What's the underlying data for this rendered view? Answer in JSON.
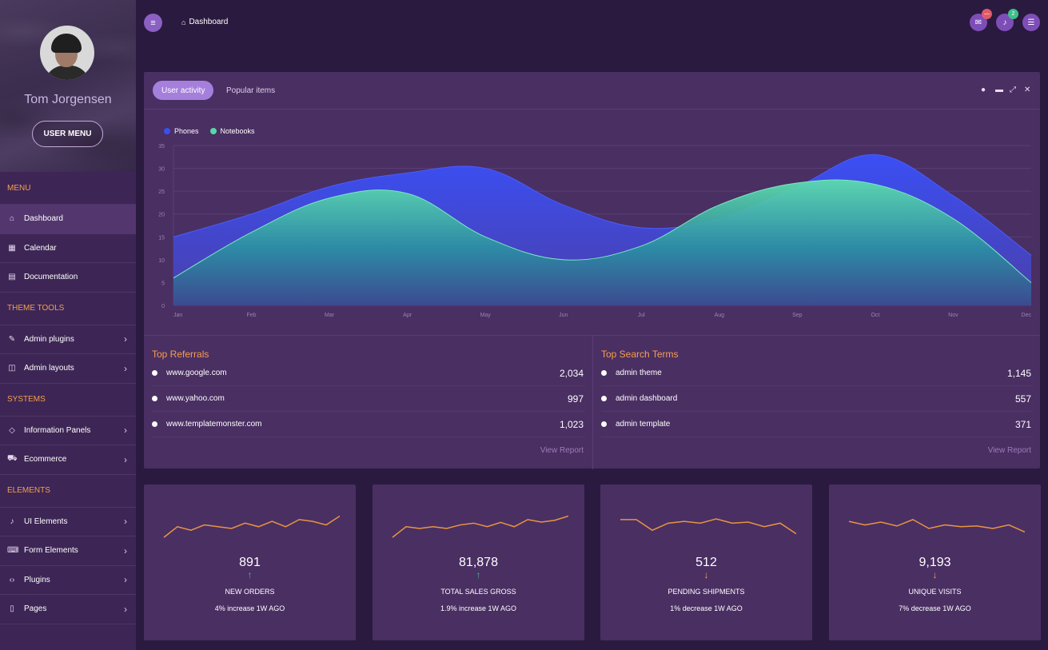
{
  "profile": {
    "name": "Tom Jorgensen",
    "menu_button": "USER MENU"
  },
  "sidebar": {
    "sections": [
      {
        "title": "MENU",
        "items": [
          {
            "label": "Dashboard",
            "icon": "home-icon",
            "active": true,
            "chevron": false
          },
          {
            "label": "Calendar",
            "icon": "calendar-icon",
            "active": false,
            "chevron": false
          },
          {
            "label": "Documentation",
            "icon": "book-icon",
            "active": false,
            "chevron": false
          }
        ]
      },
      {
        "title": "THEME TOOLS",
        "items": [
          {
            "label": "Admin plugins",
            "icon": "brush-icon",
            "chevron": true
          },
          {
            "label": "Admin layouts",
            "icon": "columns-icon",
            "chevron": true
          }
        ]
      },
      {
        "title": "SYSTEMS",
        "items": [
          {
            "label": "Information Panels",
            "icon": "diamond-icon",
            "chevron": true
          },
          {
            "label": "Ecommerce",
            "icon": "cart-icon",
            "chevron": true
          }
        ]
      },
      {
        "title": "ELEMENTS",
        "items": [
          {
            "label": "UI Elements",
            "icon": "bell-icon",
            "chevron": true
          },
          {
            "label": "Form Elements",
            "icon": "keyboard-icon",
            "chevron": true
          },
          {
            "label": "Plugins",
            "icon": "code-icon",
            "chevron": true
          },
          {
            "label": "Pages",
            "icon": "file-icon",
            "chevron": true
          }
        ]
      }
    ]
  },
  "topbar": {
    "breadcrumb": "Dashboard",
    "messages_badge": "—",
    "notifications_badge": "2",
    "colors": {
      "messages_badge": "#e05a6a",
      "notifications_badge": "#3fbf8a"
    }
  },
  "panel": {
    "tabs": [
      "User activity",
      "Popular items"
    ],
    "active_tab": 0
  },
  "chart_data": {
    "type": "area",
    "categories": [
      "Jan",
      "Feb",
      "Mar",
      "Apr",
      "May",
      "Jun",
      "Jul",
      "Aug",
      "Sep",
      "Oct",
      "Nov",
      "Dec"
    ],
    "ylim": [
      0,
      35
    ],
    "yticks": [
      0,
      5,
      10,
      15,
      20,
      25,
      30,
      35
    ],
    "grid": true,
    "legend_position": "top-left",
    "series": [
      {
        "name": "Phones",
        "values": [
          15,
          20,
          26,
          29,
          30,
          22,
          17,
          19,
          26,
          33,
          24,
          11
        ],
        "color": "#3b4ff0"
      },
      {
        "name": "Notebooks",
        "values": [
          6,
          16,
          23.5,
          24.5,
          15,
          10,
          13,
          22,
          26.8,
          26.5,
          19,
          5
        ],
        "color": "#5ad6a8"
      }
    ]
  },
  "top_referrals": {
    "title": "Top Referrals",
    "rows": [
      {
        "label": "www.google.com",
        "value": "2,034"
      },
      {
        "label": "www.yahoo.com",
        "value": "997"
      },
      {
        "label": "www.templatemonster.com",
        "value": "1,023"
      }
    ],
    "link": "View Report"
  },
  "top_search_terms": {
    "title": "Top Search Terms",
    "rows": [
      {
        "label": "admin theme",
        "value": "1,145"
      },
      {
        "label": "admin dashboard",
        "value": "557"
      },
      {
        "label": "admin template",
        "value": "371"
      }
    ],
    "link": "View Report"
  },
  "stats": [
    {
      "value": "891",
      "arrow": "↑",
      "direction": "up",
      "label": "NEW ORDERS",
      "sub": "4% increase 1W AGO",
      "spark": [
        2,
        5,
        4,
        5.5,
        5,
        4.5,
        6,
        5,
        6.5,
        5,
        7,
        6.5,
        5.5,
        8
      ]
    },
    {
      "value": "81,878",
      "arrow": "↑",
      "direction": "up",
      "label": "TOTAL SALES GROSS",
      "sub": "1.9% increase 1W AGO",
      "spark": [
        2,
        5,
        4.5,
        5,
        4.5,
        5.5,
        6,
        5,
        6.2,
        5,
        7,
        6.3,
        6.8,
        8
      ]
    },
    {
      "value": "512",
      "arrow": "↓",
      "direction": "down",
      "label": "PENDING SHIPMENTS",
      "sub": "1% decrease 1W AGO",
      "spark": [
        7,
        7,
        4,
        6,
        6.5,
        6,
        7.2,
        6,
        6.3,
        5,
        6,
        3
      ]
    },
    {
      "value": "9,193",
      "arrow": "↓",
      "direction": "down",
      "label": "UNIQUE VISITS",
      "sub": "7% decrease 1W AGO",
      "spark": [
        6.5,
        5.5,
        6.3,
        5.2,
        7,
        4.5,
        5.5,
        5,
        5.2,
        4.5,
        5.5,
        3.5
      ]
    }
  ],
  "colors": {
    "up": "#3fbfa0",
    "down": "#f59f4d",
    "spark": "#e8953f",
    "accent": "#f59f4d"
  }
}
